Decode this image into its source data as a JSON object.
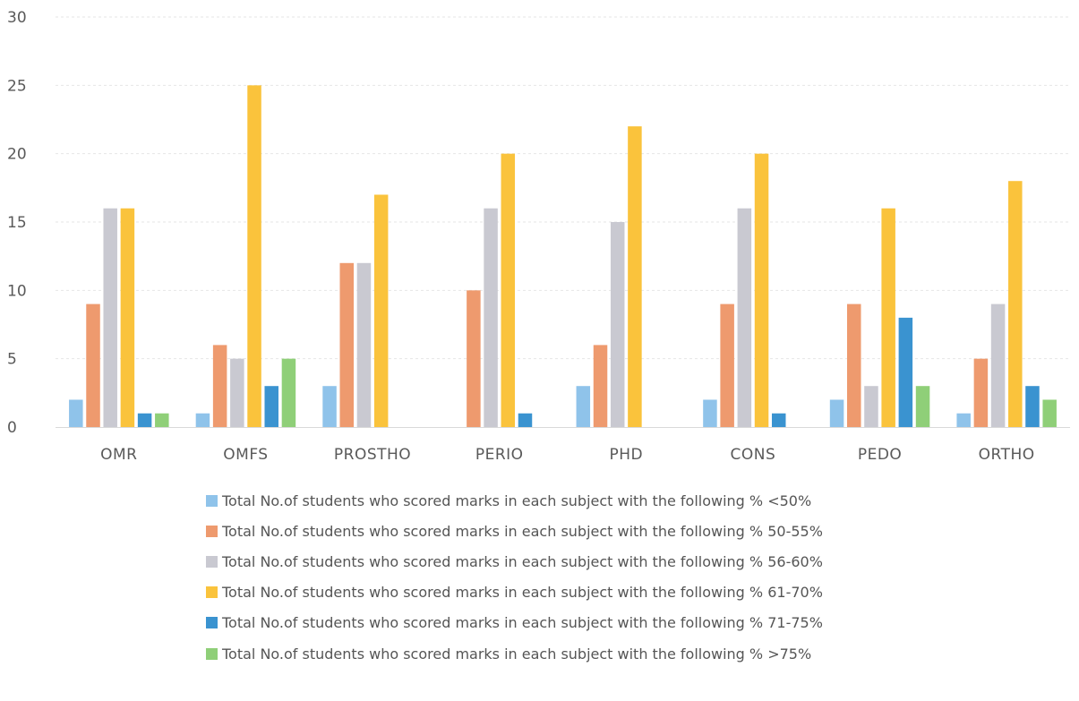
{
  "chart_data": {
    "type": "bar",
    "categories": [
      "OMR",
      "OMFS",
      "PROSTHO",
      "PERIO",
      "PHD",
      "CONS",
      "PEDO",
      "ORTHO"
    ],
    "series": [
      {
        "name": "Total No.of students who scored marks in each subject with the following % <50%",
        "color": "#8fc3ea",
        "values": [
          2,
          1,
          3,
          0,
          3,
          2,
          2,
          1
        ]
      },
      {
        "name": "Total No.of students who scored marks in each subject with the following % 50-55%",
        "color": "#ee9a6e",
        "values": [
          9,
          6,
          12,
          10,
          6,
          9,
          9,
          5
        ]
      },
      {
        "name": "Total No.of students who scored marks in each subject with the following % 56-60%",
        "color": "#c9c9d1",
        "values": [
          16,
          5,
          12,
          16,
          15,
          16,
          3,
          9
        ]
      },
      {
        "name": "Total No.of students who scored marks in each subject with the following % 61-70%",
        "color": "#fac33c",
        "values": [
          16,
          25,
          17,
          20,
          22,
          20,
          16,
          18
        ]
      },
      {
        "name": "Total No.of students who scored marks in each subject with the following % 71-75%",
        "color": "#3a93d0",
        "values": [
          1,
          3,
          0,
          1,
          0,
          1,
          8,
          3
        ]
      },
      {
        "name": "Total No.of students who scored marks in each subject with the following % >75%",
        "color": "#8fcf78",
        "values": [
          1,
          5,
          0,
          0,
          0,
          0,
          3,
          2
        ]
      }
    ],
    "yticks": [
      "0",
      "5",
      "10",
      "15",
      "20",
      "25",
      "30"
    ],
    "ylim": [
      0,
      30
    ],
    "grid": true,
    "legend_position": "bottom"
  }
}
